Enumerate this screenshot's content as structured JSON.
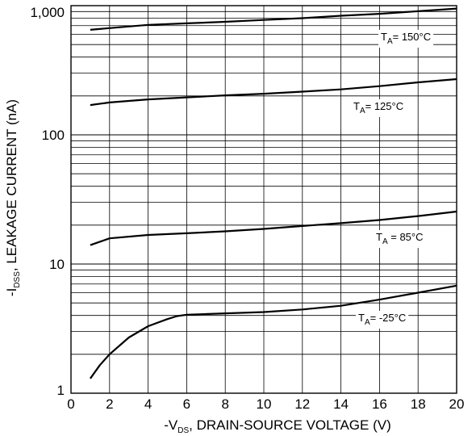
{
  "chart_data": {
    "type": "line",
    "title": "",
    "xlabel": {
      "prefix": "-V",
      "sub": "DS",
      "suffix": ", DRAIN-SOURCE VOLTAGE (V)"
    },
    "ylabel": {
      "prefix": "-I",
      "sub": "DSS",
      "suffix": ", LEAKAGE CURRENT (nA)"
    },
    "xlim": [
      0,
      20
    ],
    "ylim": [
      1,
      1000
    ],
    "yscale": "log",
    "grid": true,
    "x_ticks": [
      {
        "value": 0,
        "label": "0"
      },
      {
        "value": 2,
        "label": "2"
      },
      {
        "value": 4,
        "label": "4"
      },
      {
        "value": 6,
        "label": "6"
      },
      {
        "value": 8,
        "label": "8"
      },
      {
        "value": 10,
        "label": "10"
      },
      {
        "value": 12,
        "label": "12"
      },
      {
        "value": 14,
        "label": "14"
      },
      {
        "value": 16,
        "label": "16"
      },
      {
        "value": 18,
        "label": "18"
      },
      {
        "value": 20,
        "label": "20"
      }
    ],
    "y_ticks": [
      {
        "value": 1,
        "label": "1"
      },
      {
        "value": 10,
        "label": "10"
      },
      {
        "value": 100,
        "label": "100"
      },
      {
        "value": 1000,
        "label": "1,000"
      }
    ],
    "series": [
      {
        "label_prefix": "T",
        "label_sub": "A",
        "label_suffix": "= 150°C",
        "x": [
          1,
          2,
          4,
          6,
          8,
          10,
          12,
          14,
          16,
          18,
          20
        ],
        "y": [
          650,
          670,
          710,
          730,
          750,
          775,
          800,
          835,
          865,
          905,
          950
        ]
      },
      {
        "label_prefix": "T",
        "label_sub": "A",
        "label_suffix": "= 125°C",
        "x": [
          1,
          2,
          4,
          6,
          8,
          10,
          12,
          14,
          16,
          18,
          20
        ],
        "y": [
          170,
          178,
          188,
          195,
          202,
          208,
          216,
          225,
          238,
          255,
          270
        ]
      },
      {
        "label_prefix": "T",
        "label_sub": "A",
        "label_suffix": " = 85°C",
        "x": [
          1,
          2,
          4,
          6,
          8,
          10,
          12,
          14,
          16,
          18,
          20
        ],
        "y": [
          14,
          15.8,
          16.8,
          17.3,
          17.9,
          18.7,
          19.7,
          20.7,
          21.9,
          23.5,
          25.5
        ]
      },
      {
        "label_prefix": "T",
        "label_sub": "A",
        "label_suffix": "= -25°C",
        "x": [
          1,
          1.5,
          2,
          3,
          4,
          5,
          5.5,
          6,
          8,
          10,
          12,
          14,
          16,
          18,
          20
        ],
        "y": [
          1.3,
          1.65,
          2.0,
          2.7,
          3.3,
          3.75,
          3.95,
          4.05,
          4.15,
          4.25,
          4.45,
          4.75,
          5.3,
          6.0,
          6.8
        ]
      }
    ]
  }
}
